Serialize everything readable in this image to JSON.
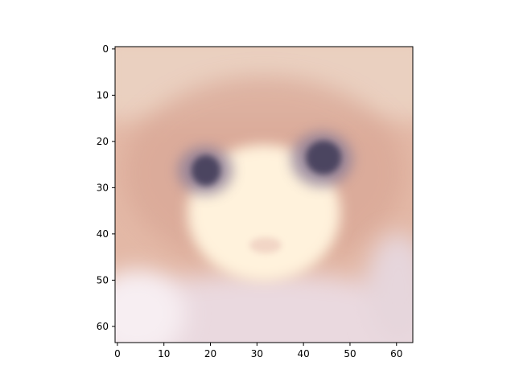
{
  "chart_data": {
    "type": "heatmap",
    "title": "",
    "xlabel": "",
    "ylabel": "",
    "image_shape": [
      64,
      64
    ],
    "colormap": "rgb",
    "image_description": "blurry anime-style face on a pinkish background: peach/pink hair, two dark grey-purple eyes, pale cream face, light lavender-white lower area",
    "xlim": [
      -0.5,
      63.5
    ],
    "ylim": [
      63.5,
      -0.5
    ],
    "x_ticks": [
      0,
      10,
      20,
      30,
      40,
      50,
      60
    ],
    "y_ticks": [
      0,
      10,
      20,
      30,
      40,
      50,
      60
    ],
    "x_tick_labels": [
      "0",
      "10",
      "20",
      "30",
      "40",
      "50",
      "60"
    ],
    "y_tick_labels": [
      "0",
      "10",
      "20",
      "30",
      "40",
      "50",
      "60"
    ],
    "grid": false,
    "legend": "none",
    "colors": {
      "background": "#e3b8a6",
      "top_tint": "#ead0c0",
      "hair": "#d9a796",
      "face": "#fff2dc",
      "eye_dark": "#4b4560",
      "eye_ring": "#8e7f98",
      "mouth": "#f2d6c6",
      "lower_area": "#ead9df",
      "lower_left_highlight": "#f7eef2"
    }
  }
}
